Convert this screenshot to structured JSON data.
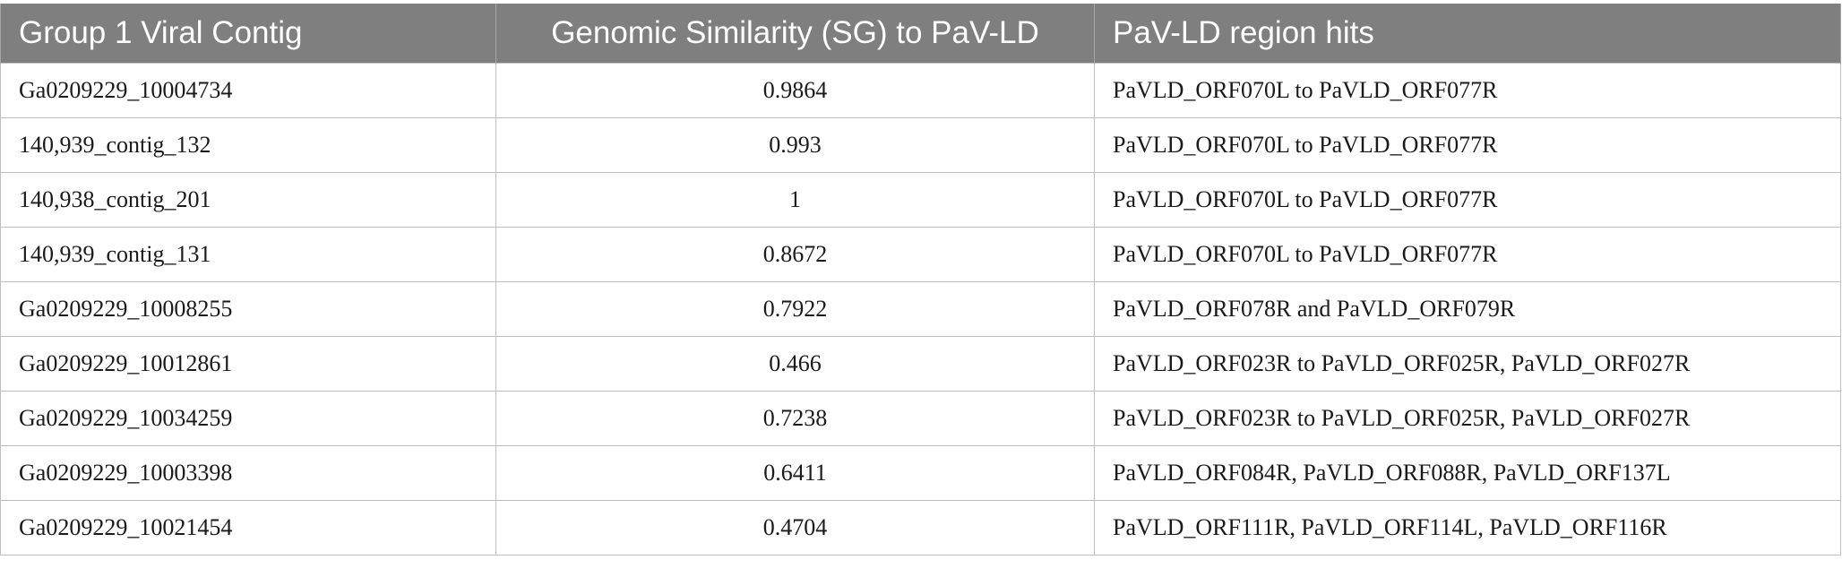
{
  "table": {
    "headers": [
      "Group 1 Viral Contig",
      "Genomic Similarity (SG) to PaV-LD",
      "PaV-LD region hits"
    ],
    "rows": [
      [
        "Ga0209229_10004734",
        "0.9864",
        "PaVLD_ORF070L to PaVLD_ORF077R"
      ],
      [
        "140,939_contig_132",
        "0.993",
        "PaVLD_ORF070L to PaVLD_ORF077R"
      ],
      [
        "140,938_contig_201",
        "1",
        "PaVLD_ORF070L to PaVLD_ORF077R"
      ],
      [
        "140,939_contig_131",
        "0.8672",
        "PaVLD_ORF070L to PaVLD_ORF077R"
      ],
      [
        "Ga0209229_10008255",
        "0.7922",
        "PaVLD_ORF078R and PaVLD_ORF079R"
      ],
      [
        "Ga0209229_10012861",
        "0.466",
        "PaVLD_ORF023R to PaVLD_ORF025R, PaVLD_ORF027R"
      ],
      [
        "Ga0209229_10034259",
        "0.7238",
        "PaVLD_ORF023R to PaVLD_ORF025R, PaVLD_ORF027R"
      ],
      [
        "Ga0209229_10003398",
        "0.6411",
        "PaVLD_ORF084R, PaVLD_ORF088R, PaVLD_ORF137L"
      ],
      [
        "Ga0209229_10021454",
        "0.4704",
        "PaVLD_ORF111R, PaVLD_ORF114L, PaVLD_ORF116R"
      ]
    ]
  }
}
